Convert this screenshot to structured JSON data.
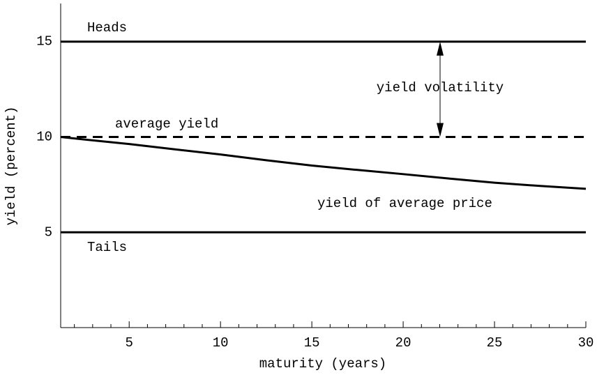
{
  "chart_data": {
    "type": "line",
    "xlabel": "maturity (years)",
    "ylabel": "yield (percent)",
    "xlim": [
      1.25,
      30
    ],
    "ylim": [
      0,
      17
    ],
    "xticks": [
      5,
      10,
      15,
      20,
      25,
      30
    ],
    "xminor_ticks": [
      2,
      3,
      4,
      6,
      7,
      8,
      9,
      11,
      12,
      13,
      14,
      16,
      17,
      18,
      19,
      21,
      22,
      23,
      24,
      26,
      27,
      28,
      29
    ],
    "yticks": [
      5,
      10,
      15
    ],
    "series": [
      {
        "name": "Heads",
        "color": "#000000",
        "dash": false,
        "x": [
          1.25,
          30
        ],
        "values": [
          15,
          15
        ]
      },
      {
        "name": "average yield",
        "color": "#000000",
        "dash": true,
        "x": [
          1.25,
          30
        ],
        "values": [
          10,
          10
        ]
      },
      {
        "name": "yield of average price",
        "color": "#000000",
        "dash": false,
        "x": [
          1.25,
          2.5,
          5,
          7.5,
          10,
          12.5,
          15,
          17.5,
          20,
          22.5,
          25,
          27.5,
          30
        ],
        "values": [
          10,
          9.87,
          9.63,
          9.35,
          9.08,
          8.78,
          8.5,
          8.27,
          8.05,
          7.82,
          7.6,
          7.43,
          7.28
        ]
      },
      {
        "name": "Tails",
        "color": "#000000",
        "dash": false,
        "x": [
          1.25,
          30
        ],
        "values": [
          5,
          5
        ]
      }
    ],
    "annotations": [
      "yield volatility"
    ]
  }
}
